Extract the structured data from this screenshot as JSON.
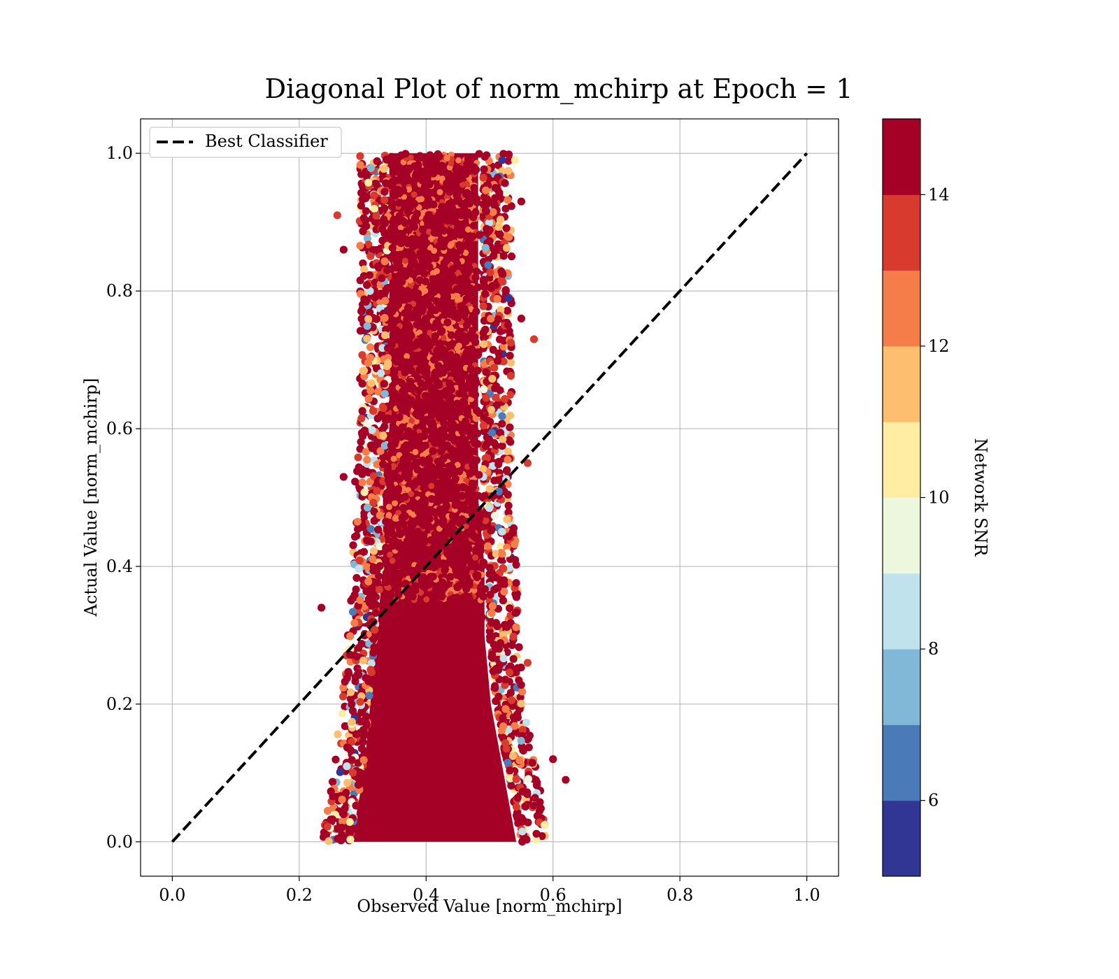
{
  "chart_data": {
    "type": "scatter",
    "title": "Diagonal Plot of norm_mchirp at Epoch = 1",
    "xlabel": "Observed Value [norm_mchirp]",
    "ylabel": "Actual Value [norm_mchirp]",
    "xlim": [
      -0.05,
      1.05
    ],
    "ylim": [
      -0.05,
      1.05
    ],
    "xticks": [
      {
        "value": 0.0,
        "label": "0.0"
      },
      {
        "value": 0.2,
        "label": "0.2"
      },
      {
        "value": 0.4,
        "label": "0.4"
      },
      {
        "value": 0.6,
        "label": "0.6"
      },
      {
        "value": 0.8,
        "label": "0.8"
      },
      {
        "value": 1.0,
        "label": "1.0"
      }
    ],
    "yticks": [
      {
        "value": 0.0,
        "label": "0.0"
      },
      {
        "value": 0.2,
        "label": "0.2"
      },
      {
        "value": 0.4,
        "label": "0.4"
      },
      {
        "value": 0.6,
        "label": "0.6"
      },
      {
        "value": 0.8,
        "label": "0.8"
      },
      {
        "value": 1.0,
        "label": "1.0"
      }
    ],
    "grid": true,
    "legend": {
      "position": "top-left",
      "entries": [
        {
          "label": "Best Classifier",
          "style": "dashed",
          "color": "#000000"
        }
      ]
    },
    "reference_line": {
      "label": "Best Classifier",
      "x": [
        0.0,
        1.0
      ],
      "y": [
        0.0,
        1.0
      ],
      "style": "dashed",
      "color": "#000000"
    },
    "colorbar": {
      "label": "Network SNR",
      "range": [
        5,
        15
      ],
      "ticks": [
        {
          "value": 6,
          "label": "6"
        },
        {
          "value": 8,
          "label": "8"
        },
        {
          "value": 10,
          "label": "10"
        },
        {
          "value": 12,
          "label": "12"
        },
        {
          "value": 14,
          "label": "14"
        }
      ],
      "bins": [
        {
          "from": 5,
          "to": 6,
          "color": "#313695"
        },
        {
          "from": 6,
          "to": 7,
          "color": "#4a7ab7"
        },
        {
          "from": 7,
          "to": 8,
          "color": "#81b7d7"
        },
        {
          "from": 8,
          "to": 9,
          "color": "#bfe2ec"
        },
        {
          "from": 9,
          "to": 10,
          "color": "#edf7de"
        },
        {
          "from": 10,
          "to": 11,
          "color": "#feeda2"
        },
        {
          "from": 11,
          "to": 12,
          "color": "#fdbf6f"
        },
        {
          "from": 12,
          "to": 13,
          "color": "#f57d4a"
        },
        {
          "from": 13,
          "to": 14,
          "color": "#d93a2e"
        },
        {
          "from": 14,
          "to": 15,
          "color": "#a50026"
        }
      ]
    },
    "series": [
      {
        "color_by": "Network SNR",
        "dense_band": [
          {
            "y": 0.0,
            "xmin": 0.27,
            "xmax": 0.56
          },
          {
            "y": 0.1,
            "xmin": 0.29,
            "xmax": 0.54
          },
          {
            "y": 0.2,
            "xmin": 0.3,
            "xmax": 0.52
          },
          {
            "y": 0.3,
            "xmin": 0.31,
            "xmax": 0.51
          },
          {
            "y": 0.4,
            "xmin": 0.32,
            "xmax": 0.51
          },
          {
            "y": 0.5,
            "xmin": 0.32,
            "xmax": 0.5
          },
          {
            "y": 0.6,
            "xmin": 0.33,
            "xmax": 0.5
          },
          {
            "y": 0.7,
            "xmin": 0.33,
            "xmax": 0.5
          },
          {
            "y": 0.8,
            "xmin": 0.33,
            "xmax": 0.5
          },
          {
            "y": 0.9,
            "xmin": 0.33,
            "xmax": 0.5
          },
          {
            "y": 1.0,
            "xmin": 0.33,
            "xmax": 0.5
          }
        ],
        "outliers": [
          {
            "x": 0.235,
            "y": 0.34,
            "snr": 15
          },
          {
            "x": 0.62,
            "y": 0.09,
            "snr": 14
          },
          {
            "x": 0.26,
            "y": 0.91,
            "snr": 13
          },
          {
            "x": 0.27,
            "y": 0.53,
            "snr": 15
          },
          {
            "x": 0.27,
            "y": 0.86,
            "snr": 15
          },
          {
            "x": 0.57,
            "y": 0.73,
            "snr": 13
          },
          {
            "x": 0.55,
            "y": 0.76,
            "snr": 14
          },
          {
            "x": 0.6,
            "y": 0.12,
            "snr": 15
          },
          {
            "x": 0.56,
            "y": 0.55,
            "snr": 13
          },
          {
            "x": 0.27,
            "y": 0.04,
            "snr": 14
          },
          {
            "x": 0.56,
            "y": 0.26,
            "snr": 13
          },
          {
            "x": 0.55,
            "y": 0.93,
            "snr": 15
          },
          {
            "x": 0.54,
            "y": 0.99,
            "snr": 10
          },
          {
            "x": 0.53,
            "y": 0.79,
            "snr": 5
          },
          {
            "x": 0.52,
            "y": 0.99,
            "snr": 5
          }
        ]
      }
    ]
  }
}
